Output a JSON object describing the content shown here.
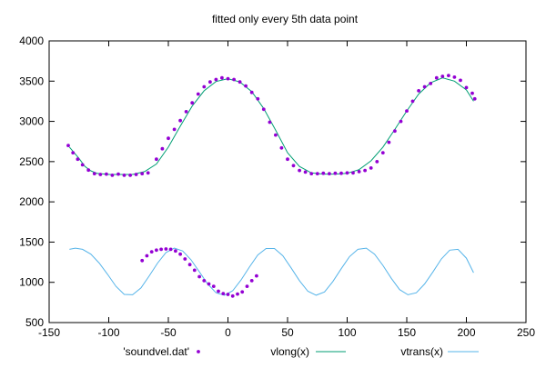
{
  "chart_data": {
    "type": "scatter",
    "title": "fitted only every 5th data point",
    "xlabel": "",
    "ylabel": "",
    "xlim": [
      -150,
      250
    ],
    "ylim": [
      500,
      4000
    ],
    "xticks": [
      "-150",
      "-100",
      "-50",
      "0",
      "50",
      "100",
      "150",
      "200",
      "250"
    ],
    "yticks": [
      "500",
      "1000",
      "1500",
      "2000",
      "2500",
      "3000",
      "3500",
      "4000"
    ],
    "grid": false,
    "legend_position": "bottom",
    "series": [
      {
        "name": "'soundvel.dat'",
        "kind": "points",
        "color": "#9400d3",
        "x": [
          -134,
          -130,
          -126,
          -122,
          -117,
          -112,
          -107,
          -102,
          -97,
          -92,
          -87,
          -82,
          -77,
          -72,
          -67,
          -60,
          -55,
          -50,
          -45,
          -40,
          -35,
          -30,
          -25,
          -20,
          -15,
          -10,
          -5,
          0,
          5,
          10,
          15,
          20,
          25,
          30,
          35,
          40,
          45,
          50,
          55,
          60,
          65,
          70,
          75,
          80,
          85,
          90,
          95,
          100,
          105,
          110,
          115,
          120,
          125,
          130,
          135,
          140,
          145,
          150,
          155,
          160,
          165,
          170,
          175,
          180,
          185,
          190,
          195,
          200,
          205,
          207
        ],
        "y": [
          2700,
          2610,
          2530,
          2460,
          2395,
          2350,
          2340,
          2345,
          2330,
          2345,
          2330,
          2330,
          2340,
          2350,
          2360,
          2530,
          2660,
          2790,
          2900,
          3010,
          3120,
          3230,
          3340,
          3430,
          3490,
          3520,
          3540,
          3530,
          3520,
          3490,
          3440,
          3360,
          3280,
          3150,
          2990,
          2830,
          2670,
          2530,
          2450,
          2390,
          2370,
          2350,
          2350,
          2355,
          2350,
          2355,
          2355,
          2360,
          2360,
          2375,
          2390,
          2420,
          2500,
          2610,
          2740,
          2880,
          3000,
          3130,
          3250,
          3380,
          3430,
          3470,
          3540,
          3560,
          3570,
          3550,
          3510,
          3420,
          3350,
          3280
        ]
      },
      {
        "name": "'soundvel.dat'",
        "kind": "points",
        "color": "#9400d3",
        "x": [
          -72,
          -68,
          -64,
          -60,
          -56,
          -52,
          -48,
          -44,
          -40,
          -36,
          -32,
          -28,
          -24,
          -20,
          -16,
          -12,
          -8,
          -4,
          0,
          4,
          8,
          12,
          16,
          20,
          24
        ],
        "y": [
          1270,
          1330,
          1380,
          1400,
          1410,
          1415,
          1410,
          1390,
          1350,
          1290,
          1220,
          1150,
          1070,
          1020,
          980,
          950,
          890,
          860,
          850,
          830,
          855,
          880,
          950,
          1020,
          1080
        ]
      },
      {
        "name": "vlong(x)",
        "kind": "line",
        "color": "#009e73",
        "x": [
          -133,
          -125,
          -120,
          -115,
          -110,
          -100,
          -90,
          -80,
          -70,
          -60,
          -50,
          -40,
          -30,
          -20,
          -10,
          0,
          10,
          20,
          30,
          40,
          50,
          60,
          70,
          80,
          90,
          100,
          110,
          120,
          130,
          140,
          150,
          160,
          170,
          180,
          190,
          200,
          206
        ],
        "y": [
          2680,
          2540,
          2440,
          2385,
          2355,
          2340,
          2340,
          2340,
          2375,
          2470,
          2680,
          2940,
          3190,
          3380,
          3495,
          3530,
          3490,
          3370,
          3160,
          2890,
          2610,
          2440,
          2360,
          2345,
          2345,
          2355,
          2400,
          2510,
          2680,
          2900,
          3130,
          3340,
          3480,
          3540,
          3500,
          3390,
          3250
        ]
      },
      {
        "name": "vtrans(x)",
        "kind": "line",
        "color": "#56b4e9",
        "x": [
          -133,
          -128,
          -122,
          -115,
          -108,
          -101,
          -94,
          -87,
          -80,
          -73,
          -66,
          -59,
          -52,
          -45,
          -38,
          -31,
          -24,
          -17,
          -10,
          -3,
          4,
          11,
          18,
          25,
          32,
          39,
          46,
          53,
          60,
          67,
          74,
          81,
          88,
          95,
          102,
          109,
          116,
          123,
          130,
          137,
          144,
          151,
          158,
          165,
          172,
          179,
          186,
          193,
          200,
          206
        ],
        "y": [
          1410,
          1425,
          1410,
          1350,
          1240,
          1100,
          950,
          850,
          845,
          930,
          1080,
          1240,
          1370,
          1425,
          1390,
          1280,
          1130,
          980,
          870,
          840,
          895,
          1030,
          1190,
          1340,
          1420,
          1420,
          1330,
          1180,
          1020,
          890,
          840,
          880,
          1010,
          1170,
          1320,
          1410,
          1425,
          1350,
          1210,
          1050,
          910,
          845,
          870,
          980,
          1130,
          1290,
          1400,
          1410,
          1300,
          1120
        ]
      }
    ],
    "legend": [
      {
        "label": "'soundvel.dat'",
        "kind": "points",
        "color": "#9400d3"
      },
      {
        "label": "vlong(x)",
        "kind": "line",
        "color": "#009e73"
      },
      {
        "label": "vtrans(x)",
        "kind": "line",
        "color": "#56b4e9"
      }
    ]
  }
}
